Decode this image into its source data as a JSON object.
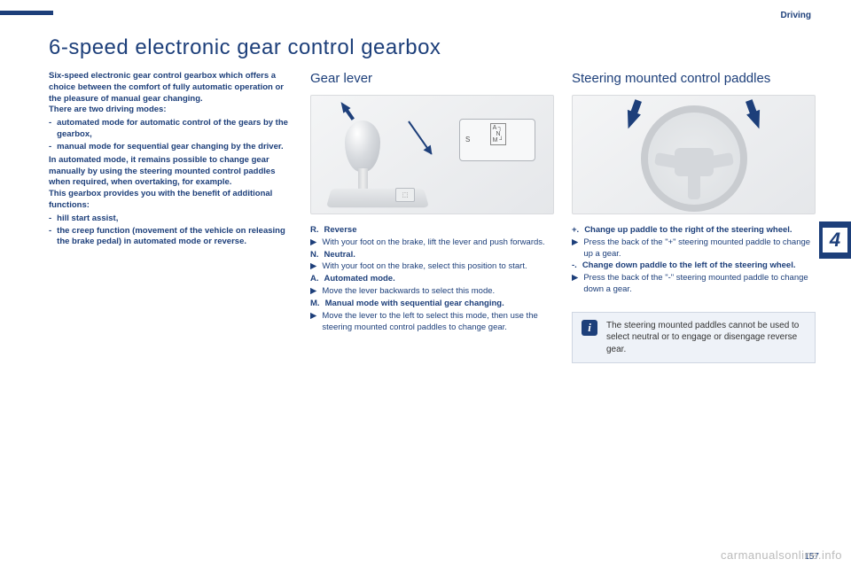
{
  "meta": {
    "section": "Driving",
    "chapter_num": "4",
    "page_num": "157",
    "watermark": "carmanualsonline.info"
  },
  "title": "6-speed electronic gear control gearbox",
  "intro": {
    "p1": "Six-speed electronic gear control gearbox which offers a choice between the comfort of fully automatic operation or the pleasure of manual gear changing.",
    "p2": "There are two driving modes:",
    "modes": [
      "automated mode for automatic control of the gears by the gearbox,",
      "manual mode for sequential gear changing by the driver."
    ],
    "p3": "In automated mode, it remains possible to change gear manually by using the steering mounted control paddles when required, when overtaking, for example.",
    "p4": "This gearbox provides you with the benefit of additional functions:",
    "funcs": [
      "hill start assist,",
      "the creep function (movement of the vehicle on releasing the brake pedal) in automated mode or reverse."
    ]
  },
  "gear_lever": {
    "heading": "Gear lever",
    "illus_panel": {
      "S": "S",
      "gate": "A ┐\n│\nN\n│\nM─+"
    },
    "R_label": "R.",
    "R_title": "Reverse",
    "R_step": "With your foot on the brake, lift the lever and push forwards.",
    "N_label": "N.",
    "N_title": "Neutral.",
    "N_step": "With your foot on the brake, select this position to start.",
    "A_label": "A.",
    "A_title": "Automated mode.",
    "A_step": "Move the lever backwards to select this mode.",
    "M_label": "M.",
    "M_title": "Manual mode with sequential gear changing.",
    "M_step": "Move the lever to the left to select this mode, then use the steering mounted control paddles to change gear."
  },
  "paddles": {
    "heading": "Steering mounted control paddles",
    "plus_label": "+.",
    "plus_title": "Change up paddle to the right of the steering wheel.",
    "plus_step": "Press the back of the \"+\" steering mounted paddle to change up a gear.",
    "minus_label": "-.",
    "minus_title": "Change down paddle to the left of the steering wheel.",
    "minus_step": "Press the back of the \"-\" steering mounted paddle to change down a gear.",
    "info": "The steering mounted paddles cannot be used to select neutral or to engage or disengage reverse gear."
  },
  "colors": {
    "brand": "#1d3f7a",
    "panel_bg": "#eef2f8"
  }
}
